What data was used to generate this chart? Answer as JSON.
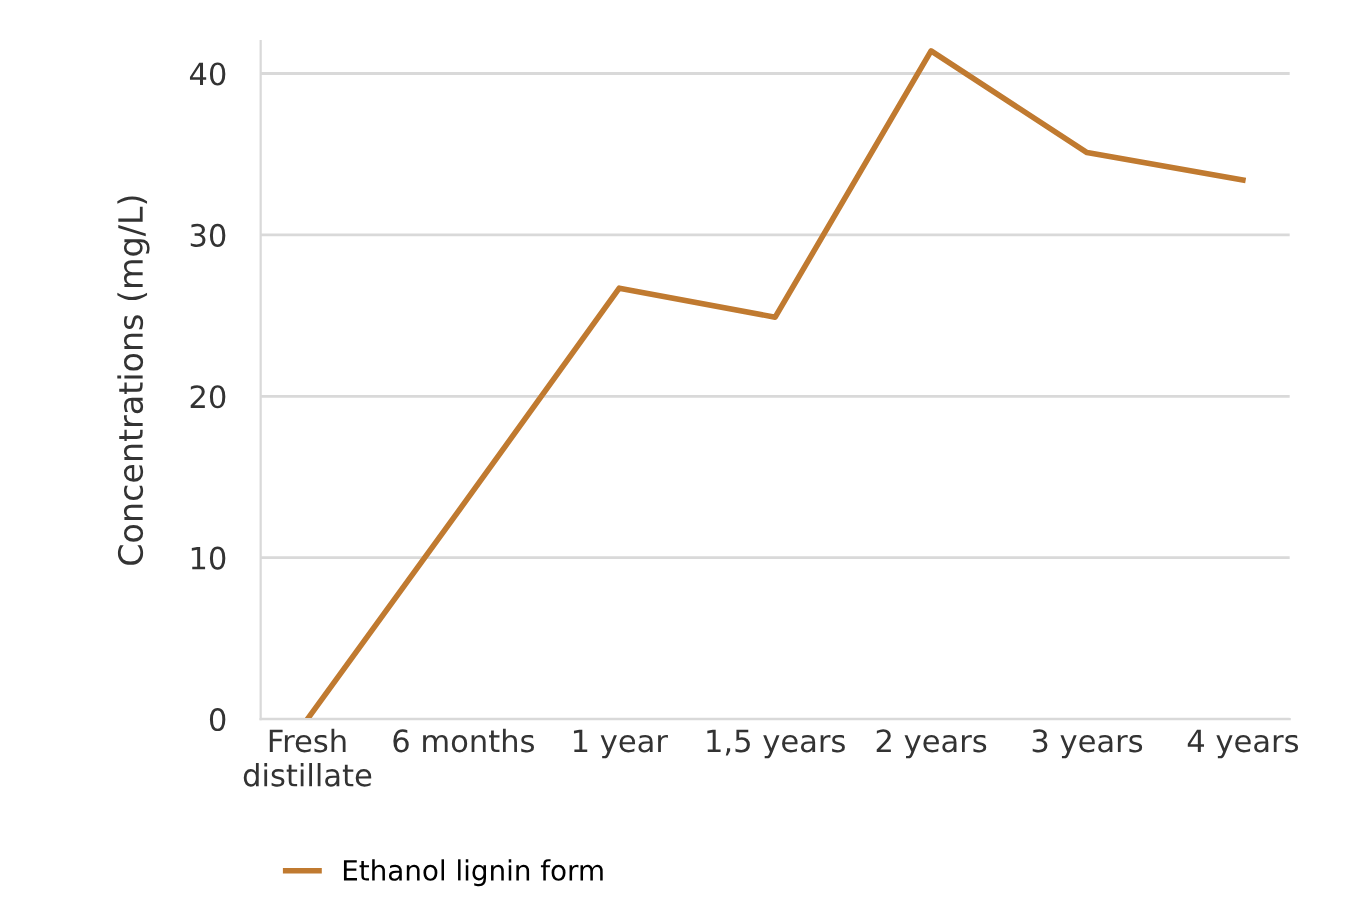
{
  "chart_data": {
    "type": "line",
    "ylabel": "Concentrations (mg/L)",
    "categories": [
      "Fresh\ndistillate",
      "6 months",
      "1 year",
      "1,5 years",
      "2 years",
      "3 years",
      "4 years"
    ],
    "series": [
      {
        "name": "Ethanol lignin form",
        "color": "#c07a30",
        "values": [
          0,
          13.3,
          26.7,
          24.9,
          41.4,
          35.1,
          33.4
        ]
      }
    ],
    "ylim": [
      0,
      42
    ],
    "yticks": [
      0,
      10,
      20,
      30,
      40
    ],
    "grid": "y",
    "legend": "bottom",
    "marker": "none",
    "line_style": "solid"
  }
}
